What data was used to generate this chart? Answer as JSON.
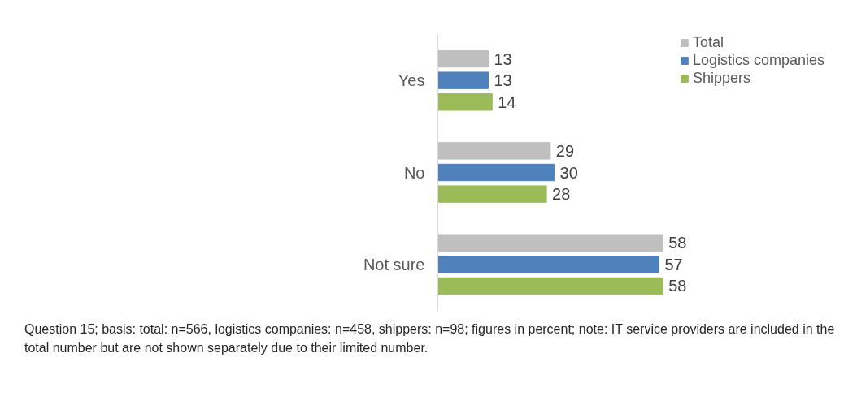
{
  "chart_data": {
    "type": "bar",
    "orientation": "horizontal",
    "categories": [
      "Yes",
      "No",
      "Not sure"
    ],
    "series": [
      {
        "name": "Total",
        "color": "#bfbfbf",
        "values": [
          13,
          29,
          58
        ]
      },
      {
        "name": "Logistics companies",
        "color": "#4f81bd",
        "values": [
          13,
          30,
          57
        ]
      },
      {
        "name": "Shippers",
        "color": "#9bbb59",
        "values": [
          14,
          28,
          58
        ]
      }
    ],
    "data_labels": true,
    "legend": "top right",
    "grid": false,
    "annotations": [
      "Question 15; basis: total: n=566, logistics companies: n=458, shippers: n=98; figures in percent; note: IT service providers are included in the total number but are not shown separately due to their limited number."
    ]
  }
}
